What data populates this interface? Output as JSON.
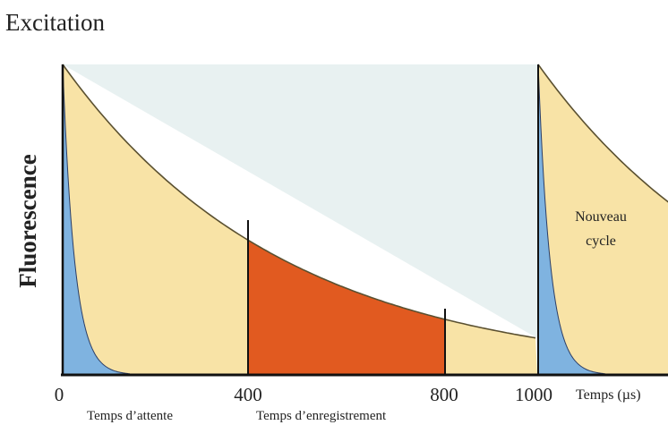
{
  "diagram": {
    "title": "Excitation",
    "y_axis_label": "Fluorescence",
    "x_unit_label": "Temps (µs)",
    "ticks": [
      {
        "value": 0,
        "label": "0"
      },
      {
        "value": 400,
        "label": "400"
      },
      {
        "value": 800,
        "label": "800"
      },
      {
        "value": 1000,
        "label": "1000"
      }
    ],
    "phases": [
      {
        "label": "Temps d’attente",
        "start": 0,
        "end": 400
      },
      {
        "label": "Temps d’enregistrement",
        "start": 400,
        "end": 800
      }
    ],
    "new_cycle_label_line1": "Nouveau",
    "new_cycle_label_line2": "cycle",
    "colors": {
      "short_lived_fluorescence": "#7fb3e0",
      "long_lived_fluorescence": "#f8e3a6",
      "recording_window": "#e15a20",
      "decay_area": "#e8f1f1",
      "curve": "#5a5030",
      "axis": "#111111"
    }
  }
}
